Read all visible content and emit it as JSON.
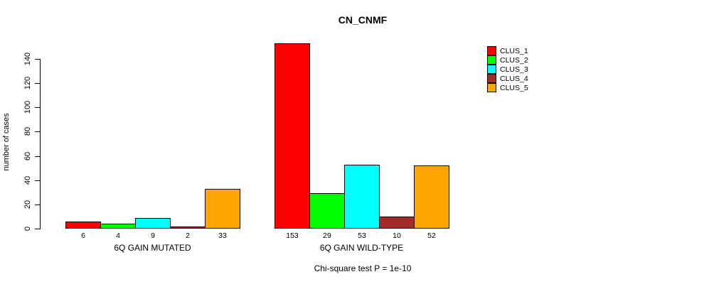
{
  "chart_data": {
    "type": "bar",
    "title": "CN_CNMF",
    "ylabel": "number of cases",
    "xlabel": "",
    "annotation": "Chi-square test P = 1e-10",
    "categories": [
      "6Q GAIN MUTATED",
      "6Q GAIN WILD-TYPE"
    ],
    "series": [
      {
        "name": "CLUS_1",
        "color": "#FF0000",
        "values": [
          6,
          153
        ]
      },
      {
        "name": "CLUS_2",
        "color": "#00FF00",
        "values": [
          4,
          29
        ]
      },
      {
        "name": "CLUS_3",
        "color": "#00FFFF",
        "values": [
          9,
          53
        ]
      },
      {
        "name": "CLUS_4",
        "color": "#A52A2A",
        "values": [
          2,
          10
        ]
      },
      {
        "name": "CLUS_5",
        "color": "#FFA500",
        "values": [
          33,
          52
        ]
      }
    ],
    "bar_value_labels": [
      [
        6,
        4,
        9,
        2,
        33
      ],
      [
        153,
        29,
        53,
        10,
        52
      ]
    ],
    "yticks": [
      0,
      20,
      40,
      60,
      80,
      100,
      120,
      140
    ],
    "ylim": [
      0,
      140
    ],
    "grid": false,
    "legend_position": "right",
    "axis_color": "#000000",
    "background_color": "#FFFFFF"
  }
}
